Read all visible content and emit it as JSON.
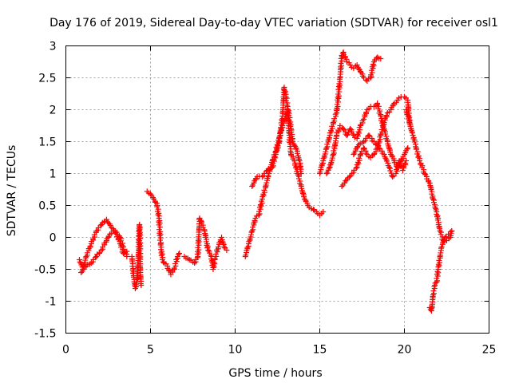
{
  "chart_data": {
    "type": "scatter",
    "title": "Day 176 of 2019, Sidereal Day-to-day VTEC variation (SDTVAR) for receiver osl1",
    "xlabel": "GPS time / hours",
    "ylabel": "SDTVAR / TECUs",
    "xlim": [
      0,
      25
    ],
    "ylim": [
      -1.5,
      3
    ],
    "x_ticks": [
      "0",
      "5",
      "10",
      "15",
      "20",
      "25"
    ],
    "y_ticks": [
      "-1.5",
      "-1",
      "-0.5",
      "0",
      "0.5",
      "1",
      "1.5",
      "2",
      "2.5",
      "3"
    ],
    "grid": true,
    "marker": "+",
    "marker_color": "#ff0000",
    "series": [
      {
        "name": "s1",
        "points": [
          [
            0.8,
            -0.35
          ],
          [
            1.0,
            -0.5
          ],
          [
            1.2,
            -0.3
          ],
          [
            1.5,
            -0.1
          ],
          [
            1.8,
            0.1
          ],
          [
            2.1,
            0.2
          ],
          [
            2.4,
            0.28
          ],
          [
            2.7,
            0.15
          ],
          [
            3.0,
            0.05
          ],
          [
            3.2,
            -0.1
          ],
          [
            3.4,
            -0.25
          ],
          [
            3.6,
            -0.22
          ]
        ]
      },
      {
        "name": "s2",
        "points": [
          [
            0.9,
            -0.55
          ],
          [
            1.2,
            -0.45
          ],
          [
            1.5,
            -0.4
          ],
          [
            1.8,
            -0.3
          ],
          [
            2.1,
            -0.2
          ],
          [
            2.4,
            -0.05
          ],
          [
            2.6,
            0.05
          ],
          [
            2.8,
            0.1
          ],
          [
            3.0,
            0.08
          ],
          [
            3.2,
            0.0
          ],
          [
            3.4,
            -0.15
          ],
          [
            3.6,
            -0.3
          ]
        ]
      },
      {
        "name": "s3",
        "points": [
          [
            3.9,
            -0.3
          ],
          [
            4.0,
            -0.6
          ],
          [
            4.1,
            -0.8
          ],
          [
            4.2,
            -0.7
          ],
          [
            4.3,
            -0.2
          ],
          [
            4.35,
            0.2
          ],
          [
            4.4,
            -0.55
          ],
          [
            4.45,
            -0.75
          ]
        ]
      },
      {
        "name": "s4",
        "points": [
          [
            4.8,
            0.72
          ],
          [
            5.0,
            0.68
          ],
          [
            5.2,
            0.6
          ],
          [
            5.4,
            0.5
          ],
          [
            5.5,
            0.3
          ],
          [
            5.6,
            -0.1
          ],
          [
            5.7,
            -0.35
          ],
          [
            5.8,
            -0.4
          ],
          [
            6.0,
            -0.45
          ],
          [
            6.2,
            -0.58
          ],
          [
            6.4,
            -0.5
          ],
          [
            6.6,
            -0.3
          ],
          [
            6.7,
            -0.25
          ]
        ]
      },
      {
        "name": "s5",
        "points": [
          [
            7.0,
            -0.3
          ],
          [
            7.3,
            -0.35
          ],
          [
            7.6,
            -0.4
          ],
          [
            7.8,
            -0.3
          ],
          [
            7.9,
            0.3
          ],
          [
            8.0,
            0.25
          ],
          [
            8.2,
            0.1
          ],
          [
            8.4,
            -0.2
          ],
          [
            8.6,
            -0.3
          ],
          [
            8.7,
            -0.5
          ],
          [
            8.8,
            -0.35
          ],
          [
            9.0,
            -0.15
          ],
          [
            9.2,
            0.0
          ],
          [
            9.35,
            -0.15
          ],
          [
            9.5,
            -0.2
          ]
        ]
      },
      {
        "name": "s6",
        "points": [
          [
            10.6,
            -0.3
          ],
          [
            10.8,
            -0.1
          ],
          [
            11.0,
            0.1
          ],
          [
            11.2,
            0.3
          ],
          [
            11.4,
            0.35
          ],
          [
            11.6,
            0.6
          ],
          [
            11.8,
            0.8
          ],
          [
            12.0,
            1.0
          ],
          [
            12.2,
            1.2
          ],
          [
            12.4,
            1.35
          ],
          [
            12.6,
            1.55
          ],
          [
            12.8,
            1.75
          ],
          [
            13.0,
            1.9
          ],
          [
            13.1,
            2.0
          ],
          [
            13.2,
            1.6
          ],
          [
            13.3,
            1.3
          ],
          [
            13.5,
            1.2
          ],
          [
            13.7,
            1.0
          ],
          [
            13.9,
            0.8
          ],
          [
            14.1,
            0.6
          ],
          [
            14.3,
            0.5
          ],
          [
            14.5,
            0.45
          ],
          [
            14.8,
            0.4
          ],
          [
            15.0,
            0.35
          ],
          [
            15.2,
            0.4
          ]
        ]
      },
      {
        "name": "s7",
        "points": [
          [
            11.0,
            0.8
          ],
          [
            11.3,
            0.95
          ],
          [
            11.6,
            0.95
          ],
          [
            11.9,
            1.05
          ],
          [
            12.2,
            1.1
          ],
          [
            12.4,
            1.3
          ],
          [
            12.6,
            1.5
          ],
          [
            12.8,
            1.9
          ],
          [
            12.9,
            2.35
          ],
          [
            13.0,
            2.2
          ],
          [
            13.1,
            2.05
          ],
          [
            13.3,
            1.7
          ],
          [
            13.4,
            1.5
          ],
          [
            13.6,
            1.4
          ],
          [
            13.8,
            1.2
          ],
          [
            13.9,
            1.0
          ]
        ]
      },
      {
        "name": "s8",
        "points": [
          [
            15.0,
            1.0
          ],
          [
            15.2,
            1.2
          ],
          [
            15.4,
            1.4
          ],
          [
            15.6,
            1.6
          ],
          [
            15.8,
            1.8
          ],
          [
            16.0,
            1.95
          ],
          [
            16.2,
            2.5
          ],
          [
            16.3,
            2.85
          ],
          [
            16.4,
            2.9
          ],
          [
            16.6,
            2.75
          ],
          [
            16.8,
            2.7
          ],
          [
            17.0,
            2.65
          ],
          [
            17.2,
            2.7
          ],
          [
            17.4,
            2.6
          ],
          [
            17.6,
            2.5
          ],
          [
            17.8,
            2.45
          ],
          [
            18.0,
            2.5
          ],
          [
            18.2,
            2.75
          ],
          [
            18.4,
            2.82
          ],
          [
            18.6,
            2.8
          ]
        ]
      },
      {
        "name": "s9",
        "points": [
          [
            15.4,
            1.0
          ],
          [
            15.6,
            1.1
          ],
          [
            15.8,
            1.3
          ],
          [
            16.0,
            1.6
          ],
          [
            16.2,
            1.75
          ],
          [
            16.4,
            1.7
          ],
          [
            16.6,
            1.6
          ],
          [
            16.8,
            1.7
          ],
          [
            17.0,
            1.6
          ],
          [
            17.2,
            1.55
          ],
          [
            17.4,
            1.75
          ],
          [
            17.6,
            1.85
          ],
          [
            17.8,
            2.0
          ],
          [
            18.0,
            2.05
          ],
          [
            18.2,
            2.05
          ],
          [
            18.4,
            2.1
          ],
          [
            18.6,
            1.9
          ],
          [
            18.8,
            1.7
          ],
          [
            19.0,
            1.5
          ],
          [
            19.2,
            1.3
          ],
          [
            19.4,
            1.2
          ],
          [
            19.6,
            1.1
          ],
          [
            19.8,
            1.2
          ],
          [
            20.0,
            1.3
          ],
          [
            20.2,
            1.4
          ]
        ]
      },
      {
        "name": "s10",
        "points": [
          [
            16.3,
            0.8
          ],
          [
            16.6,
            0.9
          ],
          [
            16.9,
            1.0
          ],
          [
            17.2,
            1.1
          ],
          [
            17.4,
            1.3
          ],
          [
            17.6,
            1.4
          ],
          [
            17.8,
            1.3
          ],
          [
            18.0,
            1.25
          ],
          [
            18.2,
            1.3
          ],
          [
            18.4,
            1.4
          ],
          [
            18.6,
            1.6
          ],
          [
            18.8,
            1.8
          ],
          [
            19.0,
            1.95
          ],
          [
            19.2,
            2.0
          ],
          [
            19.4,
            2.1
          ],
          [
            19.6,
            2.15
          ],
          [
            19.8,
            2.2
          ],
          [
            20.0,
            2.2
          ],
          [
            20.2,
            2.15
          ],
          [
            20.3,
            1.8
          ],
          [
            20.4,
            1.7
          ]
        ]
      },
      {
        "name": "s11",
        "points": [
          [
            17.0,
            1.3
          ],
          [
            17.3,
            1.45
          ],
          [
            17.6,
            1.5
          ],
          [
            17.9,
            1.6
          ],
          [
            18.2,
            1.5
          ],
          [
            18.5,
            1.4
          ],
          [
            18.8,
            1.3
          ],
          [
            19.1,
            1.1
          ],
          [
            19.3,
            0.95
          ],
          [
            19.5,
            1.0
          ],
          [
            19.7,
            1.2
          ],
          [
            19.9,
            1.05
          ],
          [
            20.1,
            1.2
          ]
        ]
      },
      {
        "name": "s12",
        "points": [
          [
            20.1,
            2.0
          ],
          [
            20.3,
            1.8
          ],
          [
            20.5,
            1.6
          ],
          [
            20.7,
            1.4
          ],
          [
            20.9,
            1.2
          ],
          [
            21.2,
            1.0
          ],
          [
            21.5,
            0.85
          ],
          [
            21.7,
            0.6
          ],
          [
            21.9,
            0.4
          ],
          [
            22.1,
            0.1
          ],
          [
            22.3,
            -0.05
          ],
          [
            22.5,
            -0.05
          ],
          [
            22.7,
            0.0
          ],
          [
            22.8,
            0.1
          ]
        ]
      },
      {
        "name": "s13",
        "points": [
          [
            21.5,
            -1.1
          ],
          [
            21.6,
            -1.15
          ],
          [
            21.7,
            -0.9
          ],
          [
            21.8,
            -0.75
          ],
          [
            21.9,
            -0.7
          ],
          [
            22.0,
            -0.5
          ],
          [
            22.1,
            -0.3
          ],
          [
            22.2,
            -0.15
          ],
          [
            22.4,
            0.0
          ],
          [
            22.6,
            0.05
          ],
          [
            22.8,
            0.1
          ]
        ]
      }
    ]
  }
}
